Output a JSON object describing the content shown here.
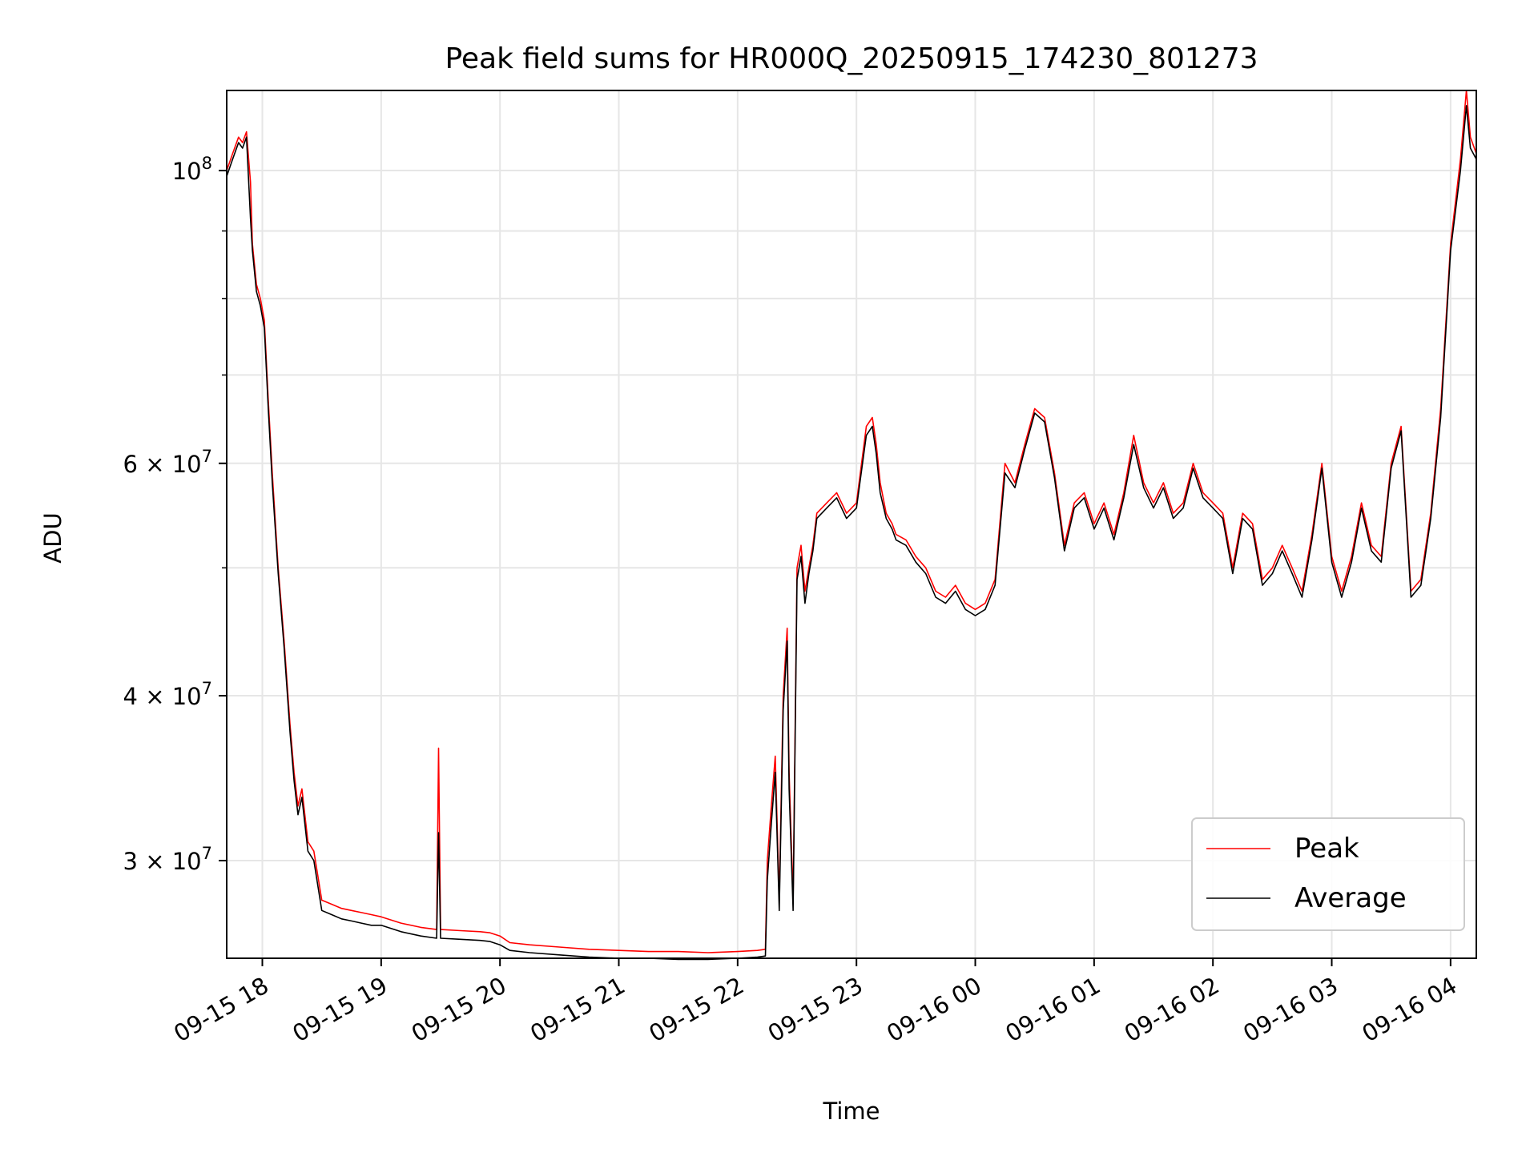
{
  "chart_data": {
    "type": "line",
    "title": "Peak field sums for HR000Q_20250915_174230_801273",
    "xlabel": "Time",
    "ylabel": "ADU",
    "yscale": "log",
    "ylim": [
      25300000,
      115000000
    ],
    "xlim": [
      "2025-09-15 17:42",
      "2025-09-16 04:13"
    ],
    "x_ticks": [
      {
        "at": "2025-09-15 18:00",
        "label": "09-15 18"
      },
      {
        "at": "2025-09-15 19:00",
        "label": "09-15 19"
      },
      {
        "at": "2025-09-15 20:00",
        "label": "09-15 20"
      },
      {
        "at": "2025-09-15 21:00",
        "label": "09-15 21"
      },
      {
        "at": "2025-09-15 22:00",
        "label": "09-15 22"
      },
      {
        "at": "2025-09-15 23:00",
        "label": "09-15 23"
      },
      {
        "at": "2025-09-16 00:00",
        "label": "09-16 00"
      },
      {
        "at": "2025-09-16 01:00",
        "label": "09-16 01"
      },
      {
        "at": "2025-09-16 02:00",
        "label": "09-16 02"
      },
      {
        "at": "2025-09-16 03:00",
        "label": "09-16 03"
      },
      {
        "at": "2025-09-16 04:00",
        "label": "09-16 04"
      }
    ],
    "y_major_ticks": [
      {
        "value": 30000000,
        "mant": "3",
        "exp": "7"
      },
      {
        "value": 40000000,
        "mant": "4",
        "exp": "7"
      },
      {
        "value": 60000000,
        "mant": "6",
        "exp": "7"
      },
      {
        "value": 100000000,
        "mant": "",
        "exp": "8"
      }
    ],
    "y_minor_gridlines": [
      50000000,
      70000000,
      80000000,
      90000000
    ],
    "grid": true,
    "legend_position": "lower-right",
    "series": [
      {
        "name": "Peak",
        "color": "#ff0000",
        "x": [
          "2025-09-15 17:42",
          "2025-09-15 17:45",
          "2025-09-15 17:48",
          "2025-09-15 17:50",
          "2025-09-15 17:52",
          "2025-09-15 17:54",
          "2025-09-15 17:55",
          "2025-09-15 17:57",
          "2025-09-15 17:59",
          "2025-09-15 18:01",
          "2025-09-15 18:03",
          "2025-09-15 18:05",
          "2025-09-15 18:08",
          "2025-09-15 18:11",
          "2025-09-15 18:14",
          "2025-09-15 18:16",
          "2025-09-15 18:18",
          "2025-09-15 18:20",
          "2025-09-15 18:23",
          "2025-09-15 18:26",
          "2025-09-15 18:30",
          "2025-09-15 18:35",
          "2025-09-15 18:40",
          "2025-09-15 18:45",
          "2025-09-15 18:50",
          "2025-09-15 18:55",
          "2025-09-15 19:00",
          "2025-09-15 19:10",
          "2025-09-15 19:20",
          "2025-09-15 19:28",
          "2025-09-15 19:29",
          "2025-09-15 19:30",
          "2025-09-15 19:40",
          "2025-09-15 19:50",
          "2025-09-15 19:55",
          "2025-09-15 20:00",
          "2025-09-15 20:05",
          "2025-09-15 20:15",
          "2025-09-15 20:30",
          "2025-09-15 20:45",
          "2025-09-15 21:00",
          "2025-09-15 21:15",
          "2025-09-15 21:30",
          "2025-09-15 21:45",
          "2025-09-15 22:00",
          "2025-09-15 22:10",
          "2025-09-15 22:14",
          "2025-09-15 22:15",
          "2025-09-15 22:17",
          "2025-09-15 22:19",
          "2025-09-15 22:21",
          "2025-09-15 22:23",
          "2025-09-15 22:25",
          "2025-09-15 22:26",
          "2025-09-15 22:28",
          "2025-09-15 22:30",
          "2025-09-15 22:32",
          "2025-09-15 22:34",
          "2025-09-15 22:36",
          "2025-09-15 22:38",
          "2025-09-15 22:40",
          "2025-09-15 22:45",
          "2025-09-15 22:50",
          "2025-09-15 22:55",
          "2025-09-15 23:00",
          "2025-09-15 23:05",
          "2025-09-15 23:08",
          "2025-09-15 23:10",
          "2025-09-15 23:12",
          "2025-09-15 23:15",
          "2025-09-15 23:18",
          "2025-09-15 23:20",
          "2025-09-15 23:25",
          "2025-09-15 23:30",
          "2025-09-15 23:35",
          "2025-09-15 23:40",
          "2025-09-15 23:45",
          "2025-09-15 23:50",
          "2025-09-15 23:55",
          "2025-09-16 00:00",
          "2025-09-16 00:05",
          "2025-09-16 00:10",
          "2025-09-16 00:15",
          "2025-09-16 00:20",
          "2025-09-16 00:25",
          "2025-09-16 00:30",
          "2025-09-16 00:35",
          "2025-09-16 00:40",
          "2025-09-16 00:45",
          "2025-09-16 00:50",
          "2025-09-16 00:55",
          "2025-09-16 01:00",
          "2025-09-16 01:05",
          "2025-09-16 01:10",
          "2025-09-16 01:15",
          "2025-09-16 01:20",
          "2025-09-16 01:25",
          "2025-09-16 01:30",
          "2025-09-16 01:35",
          "2025-09-16 01:40",
          "2025-09-16 01:45",
          "2025-09-16 01:50",
          "2025-09-16 01:55",
          "2025-09-16 02:00",
          "2025-09-16 02:05",
          "2025-09-16 02:10",
          "2025-09-16 02:15",
          "2025-09-16 02:20",
          "2025-09-16 02:25",
          "2025-09-16 02:30",
          "2025-09-16 02:35",
          "2025-09-16 02:40",
          "2025-09-16 02:45",
          "2025-09-16 02:50",
          "2025-09-16 02:55",
          "2025-09-16 03:00",
          "2025-09-16 03:05",
          "2025-09-16 03:10",
          "2025-09-16 03:15",
          "2025-09-16 03:20",
          "2025-09-16 03:25",
          "2025-09-16 03:30",
          "2025-09-16 03:35",
          "2025-09-16 03:40",
          "2025-09-16 03:45",
          "2025-09-16 03:50",
          "2025-09-16 03:55",
          "2025-09-16 04:00",
          "2025-09-16 04:05",
          "2025-09-16 04:08",
          "2025-09-16 04:10",
          "2025-09-16 04:13"
        ],
        "values": [
          100000000,
          103000000,
          106000000,
          105000000,
          107000000,
          98000000,
          88000000,
          82000000,
          80000000,
          77000000,
          67000000,
          59000000,
          50000000,
          44000000,
          38000000,
          35000000,
          33000000,
          34000000,
          31000000,
          30500000,
          28000000,
          27800000,
          27600000,
          27500000,
          27400000,
          27300000,
          27200000,
          26900000,
          26700000,
          26600000,
          36500000,
          26600000,
          26550000,
          26500000,
          26450000,
          26300000,
          26000000,
          25900000,
          25800000,
          25700000,
          25650000,
          25600000,
          25600000,
          25550000,
          25600000,
          25650000,
          25700000,
          30000000,
          33000000,
          36000000,
          28000000,
          40000000,
          45000000,
          35000000,
          28000000,
          50000000,
          52000000,
          48000000,
          50000000,
          52000000,
          55000000,
          56000000,
          57000000,
          55000000,
          56000000,
          64000000,
          65000000,
          62000000,
          58000000,
          55000000,
          54000000,
          53000000,
          52500000,
          51000000,
          50000000,
          48000000,
          47500000,
          48500000,
          47000000,
          46500000,
          47000000,
          49000000,
          60000000,
          58000000,
          62000000,
          66000000,
          65000000,
          59000000,
          52000000,
          56000000,
          57000000,
          54000000,
          56000000,
          53000000,
          57000000,
          63000000,
          58000000,
          56000000,
          58000000,
          55000000,
          56000000,
          60000000,
          57000000,
          56000000,
          55000000,
          50000000,
          55000000,
          54000000,
          49000000,
          50000000,
          52000000,
          50000000,
          48000000,
          53000000,
          60000000,
          51000000,
          48000000,
          51000000,
          56000000,
          52000000,
          51000000,
          60000000,
          64000000,
          48000000,
          49000000,
          55000000,
          66000000,
          88000000,
          102000000,
          115000000,
          106000000,
          103000000
        ]
      },
      {
        "name": "Average",
        "color": "#000000",
        "x": [
          "2025-09-15 17:42",
          "2025-09-15 17:45",
          "2025-09-15 17:48",
          "2025-09-15 17:50",
          "2025-09-15 17:52",
          "2025-09-15 17:54",
          "2025-09-15 17:55",
          "2025-09-15 17:57",
          "2025-09-15 17:59",
          "2025-09-15 18:01",
          "2025-09-15 18:03",
          "2025-09-15 18:05",
          "2025-09-15 18:08",
          "2025-09-15 18:11",
          "2025-09-15 18:14",
          "2025-09-15 18:16",
          "2025-09-15 18:18",
          "2025-09-15 18:20",
          "2025-09-15 18:23",
          "2025-09-15 18:26",
          "2025-09-15 18:30",
          "2025-09-15 18:35",
          "2025-09-15 18:40",
          "2025-09-15 18:45",
          "2025-09-15 18:50",
          "2025-09-15 18:55",
          "2025-09-15 19:00",
          "2025-09-15 19:10",
          "2025-09-15 19:20",
          "2025-09-15 19:28",
          "2025-09-15 19:29",
          "2025-09-15 19:30",
          "2025-09-15 19:40",
          "2025-09-15 19:50",
          "2025-09-15 19:55",
          "2025-09-15 20:00",
          "2025-09-15 20:05",
          "2025-09-15 20:15",
          "2025-09-15 20:30",
          "2025-09-15 20:45",
          "2025-09-15 21:00",
          "2025-09-15 21:15",
          "2025-09-15 21:30",
          "2025-09-15 21:45",
          "2025-09-15 22:00",
          "2025-09-15 22:10",
          "2025-09-15 22:14",
          "2025-09-15 22:15",
          "2025-09-15 22:17",
          "2025-09-15 22:19",
          "2025-09-15 22:21",
          "2025-09-15 22:23",
          "2025-09-15 22:25",
          "2025-09-15 22:26",
          "2025-09-15 22:28",
          "2025-09-15 22:30",
          "2025-09-15 22:32",
          "2025-09-15 22:34",
          "2025-09-15 22:36",
          "2025-09-15 22:38",
          "2025-09-15 22:40",
          "2025-09-15 22:45",
          "2025-09-15 22:50",
          "2025-09-15 22:55",
          "2025-09-15 23:00",
          "2025-09-15 23:05",
          "2025-09-15 23:08",
          "2025-09-15 23:10",
          "2025-09-15 23:12",
          "2025-09-15 23:15",
          "2025-09-15 23:18",
          "2025-09-15 23:20",
          "2025-09-15 23:25",
          "2025-09-15 23:30",
          "2025-09-15 23:35",
          "2025-09-15 23:40",
          "2025-09-15 23:45",
          "2025-09-15 23:50",
          "2025-09-15 23:55",
          "2025-09-16 00:00",
          "2025-09-16 00:05",
          "2025-09-16 00:10",
          "2025-09-16 00:15",
          "2025-09-16 00:20",
          "2025-09-16 00:25",
          "2025-09-16 00:30",
          "2025-09-16 00:35",
          "2025-09-16 00:40",
          "2025-09-16 00:45",
          "2025-09-16 00:50",
          "2025-09-16 00:55",
          "2025-09-16 01:00",
          "2025-09-16 01:05",
          "2025-09-16 01:10",
          "2025-09-16 01:15",
          "2025-09-16 01:20",
          "2025-09-16 01:25",
          "2025-09-16 01:30",
          "2025-09-16 01:35",
          "2025-09-16 01:40",
          "2025-09-16 01:45",
          "2025-09-16 01:50",
          "2025-09-16 01:55",
          "2025-09-16 02:00",
          "2025-09-16 02:05",
          "2025-09-16 02:10",
          "2025-09-16 02:15",
          "2025-09-16 02:20",
          "2025-09-16 02:25",
          "2025-09-16 02:30",
          "2025-09-16 02:35",
          "2025-09-16 02:40",
          "2025-09-16 02:45",
          "2025-09-16 02:50",
          "2025-09-16 02:55",
          "2025-09-16 03:00",
          "2025-09-16 03:05",
          "2025-09-16 03:10",
          "2025-09-16 03:15",
          "2025-09-16 03:20",
          "2025-09-16 03:25",
          "2025-09-16 03:30",
          "2025-09-16 03:35",
          "2025-09-16 03:40",
          "2025-09-16 03:45",
          "2025-09-16 03:50",
          "2025-09-16 03:55",
          "2025-09-16 04:00",
          "2025-09-16 04:05",
          "2025-09-16 04:08",
          "2025-09-16 04:10",
          "2025-09-16 04:13"
        ],
        "values": [
          99000000,
          102000000,
          105000000,
          104000000,
          106000000,
          92000000,
          87000000,
          81000000,
          79000000,
          76000000,
          66000000,
          58000000,
          49500000,
          43500000,
          37500000,
          34500000,
          32500000,
          33500000,
          30500000,
          30000000,
          27500000,
          27300000,
          27100000,
          27000000,
          26900000,
          26800000,
          26800000,
          26500000,
          26300000,
          26200000,
          31500000,
          26200000,
          26150000,
          26100000,
          26050000,
          25900000,
          25650000,
          25550000,
          25450000,
          25350000,
          25300000,
          25300000,
          25250000,
          25250000,
          25300000,
          25350000,
          25400000,
          29000000,
          32000000,
          35000000,
          27500000,
          39000000,
          44000000,
          34000000,
          27500000,
          49000000,
          51000000,
          47000000,
          49500000,
          51500000,
          54500000,
          55500000,
          56500000,
          54500000,
          55500000,
          63000000,
          64000000,
          61000000,
          57000000,
          54500000,
          53500000,
          52500000,
          52000000,
          50500000,
          49500000,
          47500000,
          47000000,
          48000000,
          46500000,
          46000000,
          46500000,
          48500000,
          59000000,
          57500000,
          61500000,
          65500000,
          64500000,
          58500000,
          51500000,
          55500000,
          56500000,
          53500000,
          55500000,
          52500000,
          56500000,
          62000000,
          57500000,
          55500000,
          57500000,
          54500000,
          55500000,
          59500000,
          56500000,
          55500000,
          54500000,
          49500000,
          54500000,
          53500000,
          48500000,
          49500000,
          51500000,
          49500000,
          47500000,
          52500000,
          59500000,
          50500000,
          47500000,
          50500000,
          55500000,
          51500000,
          50500000,
          59500000,
          63500000,
          47500000,
          48500000,
          54500000,
          65000000,
          87000000,
          100000000,
          112000000,
          104000000,
          102000000
        ]
      }
    ]
  }
}
